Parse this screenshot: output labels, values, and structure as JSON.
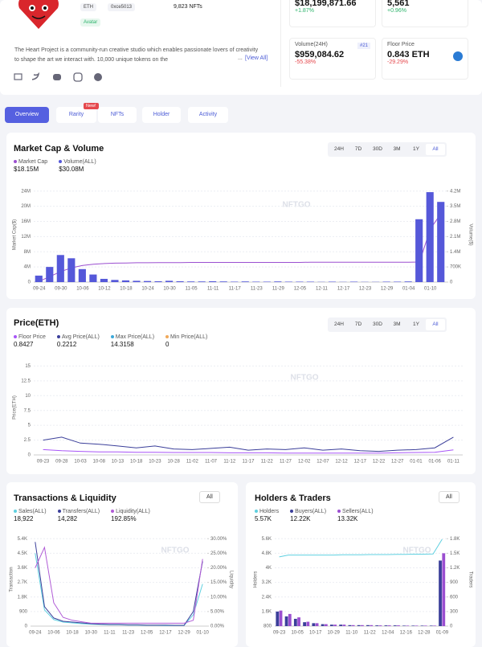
{
  "header": {
    "chain": "ETH",
    "contract": "0xce5013",
    "items": "9,823 NFTs",
    "tag": "Avatar",
    "description": "The Heart Project is a community-run creative studio which enables passionate lovers of creativity to shape the art we interact with. 10,000 unique tokens on the",
    "ellipsis": "...",
    "view_all": "[View All]",
    "stats": [
      {
        "value": "$18,199,871.66",
        "change": "+1.87%"
      },
      {
        "value": "5,561",
        "change": "+0.96%"
      },
      {
        "label": "Volume(24H)",
        "rank": "#21",
        "value": "$959,084.62",
        "change": "-55.38%"
      },
      {
        "label": "Floor Price",
        "value": "0.843 ETH",
        "change": "-29.29%"
      }
    ]
  },
  "tabs": [
    {
      "label": "Overview"
    },
    {
      "label": "Rarity",
      "badge": "New!"
    },
    {
      "label": "NFTs"
    },
    {
      "label": "Holder"
    },
    {
      "label": "Activity"
    }
  ],
  "time_ranges": [
    "24H",
    "7D",
    "30D",
    "3M",
    "1Y",
    "All"
  ],
  "chart_data": [
    {
      "type": "combo",
      "title": "Market Cap & Volume",
      "watermark": "NFTGO",
      "grid": true,
      "ylabel": "Market Cap($)",
      "y2label": "Volume($)",
      "categories": [
        "09-24",
        null,
        "09-30",
        null,
        "10-06",
        null,
        "10-12",
        null,
        "10-18",
        null,
        "10-24",
        null,
        "10-30",
        null,
        "11-05",
        null,
        "11-11",
        null,
        "11-17",
        null,
        "11-23",
        null,
        "11-29",
        null,
        "12-05",
        null,
        "12-11",
        null,
        "12-17",
        null,
        "12-23",
        null,
        "12-29",
        null,
        "01-04",
        null,
        "01-10",
        null
      ],
      "ylim": [
        0,
        25000000
      ],
      "yticks": [
        0,
        {
          "value": 4000000,
          "label": "4M"
        },
        {
          "value": 8000000,
          "label": "8M"
        },
        {
          "value": 12000000,
          "label": "12M"
        },
        {
          "value": 16000000,
          "label": "16M"
        },
        {
          "value": 20000000,
          "label": "20M"
        },
        {
          "value": 24000000,
          "label": "24M"
        }
      ],
      "y2lim": [
        0,
        4375000
      ],
      "y2ticks": [
        0,
        {
          "value": 700000,
          "label": "700K"
        },
        {
          "value": 1400000,
          "label": "1.4M"
        },
        {
          "value": 2100000,
          "label": "2.1M"
        },
        {
          "value": 2800000,
          "label": "2.8M"
        },
        {
          "value": 3500000,
          "label": "3.5M"
        },
        {
          "value": 4200000,
          "label": "4.2M"
        }
      ],
      "series": [
        {
          "name": "Market Cap",
          "total": "$18.15M",
          "color": "#9b4fd0",
          "kind": "line",
          "axis": "y",
          "values": [
            200000,
            1500000,
            2800000,
            3800000,
            4400000,
            4700000,
            4900000,
            5000000,
            5050000,
            5100000,
            5100000,
            5150000,
            5150000,
            5150000,
            5200000,
            5200000,
            5200000,
            5200000,
            5200000,
            5200000,
            5200000,
            5200000,
            5200000,
            5200000,
            5200000,
            5250000,
            5250000,
            5250000,
            5250000,
            5250000,
            5250000,
            5250000,
            5250000,
            5250000,
            5250000,
            5300000,
            14000000,
            18150000
          ]
        },
        {
          "name": "Volume(ALL)",
          "total": "$30.08M",
          "color": "#5558d9",
          "kind": "bar",
          "axis": "y2",
          "values": [
            300000,
            700000,
            1250000,
            1100000,
            600000,
            350000,
            150000,
            100000,
            80000,
            60000,
            50000,
            40000,
            60000,
            40000,
            30000,
            30000,
            40000,
            30000,
            20000,
            30000,
            20000,
            20000,
            30000,
            20000,
            20000,
            20000,
            10000,
            20000,
            10000,
            20000,
            10000,
            10000,
            20000,
            20000,
            30000,
            2900000,
            4150000,
            3700000
          ]
        }
      ]
    },
    {
      "type": "line",
      "title": "Price(ETH)",
      "watermark": "NFTGO",
      "grid": true,
      "ylabel": "Price(ETH)",
      "categories": [
        "09-23",
        "09-28",
        "10-03",
        "10-08",
        "10-13",
        "10-18",
        "10-23",
        "10-28",
        "11-02",
        "11-07",
        "11-12",
        "11-17",
        "11-22",
        "11-27",
        "12-02",
        "12-07",
        "12-12",
        "12-17",
        "12-22",
        "12-27",
        "01-01",
        "01-06",
        "01-11"
      ],
      "ylim": [
        0,
        16
      ],
      "yticks": [
        0,
        2.5,
        5,
        7.5,
        10,
        12.5,
        15
      ],
      "series": [
        {
          "name": "Floor Price",
          "total": "0.8427",
          "color": "#a855f7",
          "kind": "line",
          "axis": "y",
          "values": [
            0.9,
            0.7,
            0.6,
            0.5,
            0.5,
            0.45,
            0.45,
            0.4,
            0.4,
            0.4,
            0.35,
            0.35,
            0.35,
            0.3,
            0.3,
            0.3,
            0.3,
            0.3,
            0.3,
            0.35,
            0.4,
            0.45,
            0.84
          ]
        },
        {
          "name": "Avg Price(ALL)",
          "total": "0.2212",
          "color": "#3b3f9a",
          "kind": "line",
          "axis": "y",
          "values": [
            2.5,
            3,
            2,
            1.8,
            1.5,
            1.2,
            1.5,
            1.0,
            0.9,
            1.1,
            1.3,
            0.8,
            1.0,
            0.9,
            1.2,
            0.8,
            1.0,
            0.7,
            0.6,
            0.8,
            0.9,
            1.2,
            3.0
          ]
        }
      ],
      "stats": [
        {
          "name": "Max Price(ALL)",
          "value": "14.3158",
          "color": "#3ba9d9"
        },
        {
          "name": "Min Price(ALL)",
          "value": "0",
          "color": "#f0a95a"
        }
      ]
    },
    {
      "type": "combo",
      "title": "Transactions & Liquidity",
      "watermark": "NFTGO",
      "grid": true,
      "filter": "All",
      "ylabel": "Transaction",
      "y2label": "Liquidity",
      "categories": [
        "09-24",
        null,
        "10-06",
        null,
        "10-18",
        null,
        "10-30",
        null,
        "11-11",
        null,
        "11-23",
        null,
        "12-05",
        null,
        "12-17",
        null,
        "12-29",
        null,
        "01-10"
      ],
      "ylim": [
        0,
        5760
      ],
      "yticks": [
        0,
        900,
        {
          "value": 1800,
          "label": "1.8K"
        },
        {
          "value": 2700,
          "label": "2.7K"
        },
        {
          "value": 3600,
          "label": "3.6K"
        },
        {
          "value": 4500,
          "label": "4.5K"
        },
        {
          "value": 5400,
          "label": "5.4K"
        }
      ],
      "y2lim": [
        0,
        32
      ],
      "y2ticks": [
        {
          "value": 0,
          "label": "0.00%"
        },
        {
          "value": 5,
          "label": "5.00%"
        },
        {
          "value": 10,
          "label": "10.00%"
        },
        {
          "value": 15,
          "label": "15.00%"
        },
        {
          "value": 20,
          "label": "20.00%"
        },
        {
          "value": 25,
          "label": "25.00%"
        },
        {
          "value": 30,
          "label": "30.00%"
        }
      ],
      "series": [
        {
          "name": "Sales(ALL)",
          "total": "18,922",
          "color": "#5fd0e0",
          "kind": "line",
          "axis": "y",
          "values": [
            4500,
            1000,
            400,
            250,
            200,
            150,
            120,
            100,
            80,
            80,
            60,
            60,
            50,
            50,
            40,
            40,
            40,
            700,
            2600
          ]
        },
        {
          "name": "Transfers(ALL)",
          "total": "14,282",
          "color": "#3b3f9a",
          "kind": "line",
          "axis": "y",
          "values": [
            5200,
            1200,
            500,
            300,
            250,
            200,
            150,
            120,
            100,
            100,
            80,
            80,
            60,
            60,
            60,
            50,
            50,
            900,
            4000
          ]
        },
        {
          "name": "Liquidity(ALL)",
          "total": "192.85%",
          "color": "#b05bd6",
          "kind": "line",
          "axis": "y2",
          "values": [
            20,
            27,
            8,
            3,
            2,
            1.5,
            1,
            1,
            1,
            1,
            1,
            1,
            1,
            1,
            1,
            1,
            1,
            2,
            23
          ]
        }
      ]
    },
    {
      "type": "combo",
      "title": "Holders & Traders",
      "watermark": "NFTGO",
      "grid": true,
      "filter": "All",
      "ylabel": "Holders",
      "y2label": "Traders",
      "categories": [
        "09-23",
        null,
        "10-05",
        null,
        "10-17",
        null,
        "10-29",
        null,
        "11-10",
        null,
        "11-22",
        null,
        "12-04",
        null,
        "12-16",
        null,
        "12-28",
        null,
        "01-09"
      ],
      "ylim": [
        800,
        5920
      ],
      "yticks": [
        800,
        {
          "value": 1600,
          "label": "1.6K"
        },
        {
          "value": 2400,
          "label": "2.4K"
        },
        {
          "value": 3200,
          "label": "3.2K"
        },
        {
          "value": 4000,
          "label": "4K"
        },
        {
          "value": 4800,
          "label": "4.8K"
        },
        {
          "value": 5600,
          "label": "5.6K"
        }
      ],
      "y2lim": [
        0,
        1920
      ],
      "y2ticks": [
        0,
        300,
        600,
        900,
        {
          "value": 1200,
          "label": "1.2K"
        },
        {
          "value": 1500,
          "label": "1.5K"
        },
        {
          "value": 1800,
          "label": "1.8K"
        }
      ],
      "series": [
        {
          "name": "Holders",
          "total": "5.57K",
          "color": "#5fd0e0",
          "kind": "line",
          "axis": "y",
          "values": [
            4600,
            4700,
            4700,
            4700,
            4700,
            4700,
            4700,
            4720,
            4720,
            4720,
            4730,
            4730,
            4730,
            4740,
            4740,
            4750,
            4750,
            4760,
            5570
          ]
        },
        {
          "name": "Buyers(ALL)",
          "total": "12.22K",
          "color": "#3b3f9a",
          "kind": "bar",
          "axis": "y2",
          "values": [
            300,
            200,
            150,
            80,
            60,
            40,
            30,
            30,
            20,
            20,
            20,
            15,
            15,
            15,
            10,
            10,
            10,
            10,
            1350
          ]
        },
        {
          "name": "Sellers(ALL)",
          "total": "13.32K",
          "color": "#9b4fd0",
          "kind": "bar",
          "axis": "y2",
          "values": [
            320,
            250,
            180,
            90,
            60,
            40,
            30,
            30,
            20,
            20,
            20,
            15,
            15,
            15,
            10,
            10,
            10,
            10,
            1500
          ]
        }
      ]
    }
  ]
}
